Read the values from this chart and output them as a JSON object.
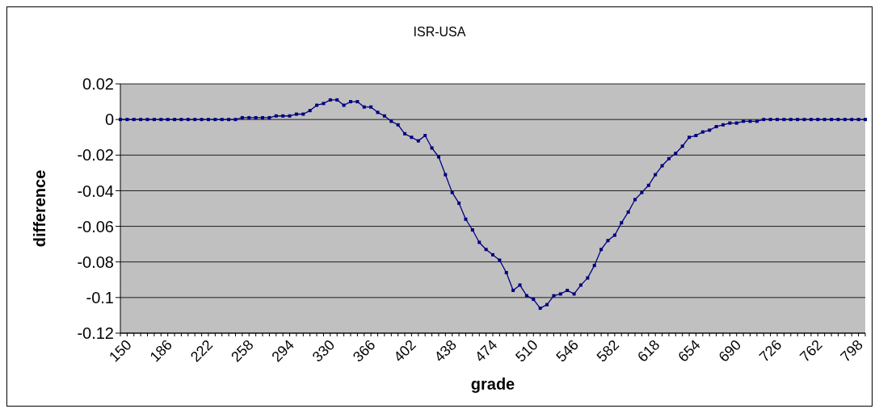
{
  "chart_data": {
    "type": "line",
    "title": "ISR-USA",
    "xlabel": "grade",
    "ylabel": "difference",
    "categories": [
      "150",
      null,
      null,
      null,
      null,
      null,
      "186",
      null,
      null,
      null,
      null,
      null,
      "222",
      null,
      null,
      null,
      null,
      null,
      "258",
      null,
      null,
      null,
      null,
      null,
      "294",
      null,
      null,
      null,
      null,
      null,
      "330",
      null,
      null,
      null,
      null,
      null,
      "366",
      null,
      null,
      null,
      null,
      null,
      "402",
      null,
      null,
      null,
      null,
      null,
      "438",
      null,
      null,
      null,
      null,
      null,
      "474",
      null,
      null,
      null,
      null,
      null,
      "510",
      null,
      null,
      null,
      null,
      null,
      "546",
      null,
      null,
      null,
      null,
      null,
      "582",
      null,
      null,
      null,
      null,
      null,
      "618",
      null,
      null,
      null,
      null,
      null,
      "654",
      null,
      null,
      null,
      null,
      null,
      "690",
      null,
      null,
      null,
      null,
      null,
      "726",
      null,
      null,
      null,
      null,
      null,
      "762",
      null,
      null,
      null,
      null,
      null,
      "798",
      null,
      null
    ],
    "series": [
      {
        "color": "#000080",
        "values": [
          0,
          0,
          0,
          0,
          0,
          0,
          0,
          0,
          0,
          0,
          0,
          0,
          0,
          0,
          0,
          0,
          0,
          0,
          0.001,
          0.001,
          0.001,
          0.001,
          0.001,
          0.002,
          0.002,
          0.002,
          0.003,
          0.003,
          0.005,
          0.008,
          0.009,
          0.011,
          0.011,
          0.008,
          0.01,
          0.01,
          0.007,
          0.007,
          0.004,
          0.002,
          -0.001,
          -0.003,
          -0.008,
          -0.01,
          -0.012,
          -0.009,
          -0.016,
          -0.021,
          -0.031,
          -0.041,
          -0.047,
          -0.056,
          -0.062,
          -0.069,
          -0.073,
          -0.076,
          -0.079,
          -0.086,
          -0.096,
          -0.093,
          -0.099,
          -0.101,
          -0.106,
          -0.104,
          -0.099,
          -0.098,
          -0.096,
          -0.098,
          -0.093,
          -0.089,
          -0.082,
          -0.073,
          -0.068,
          -0.065,
          -0.058,
          -0.052,
          -0.045,
          -0.041,
          -0.037,
          -0.031,
          -0.026,
          -0.022,
          -0.019,
          -0.015,
          -0.01,
          -0.009,
          -0.007,
          -0.006,
          -0.004,
          -0.003,
          -0.002,
          -0.002,
          -0.001,
          -0.001,
          -0.001,
          0,
          0,
          0,
          0,
          0,
          0,
          0,
          0,
          0,
          0,
          0,
          0,
          0,
          0,
          0,
          0
        ]
      }
    ],
    "ylim": [
      -0.12,
      0.02
    ],
    "yticks": [
      -0.12,
      -0.1,
      -0.08,
      -0.06,
      -0.04,
      -0.02,
      0,
      0.02
    ],
    "grid": "y",
    "legend": false,
    "marker": "square",
    "line_style": "solid"
  }
}
